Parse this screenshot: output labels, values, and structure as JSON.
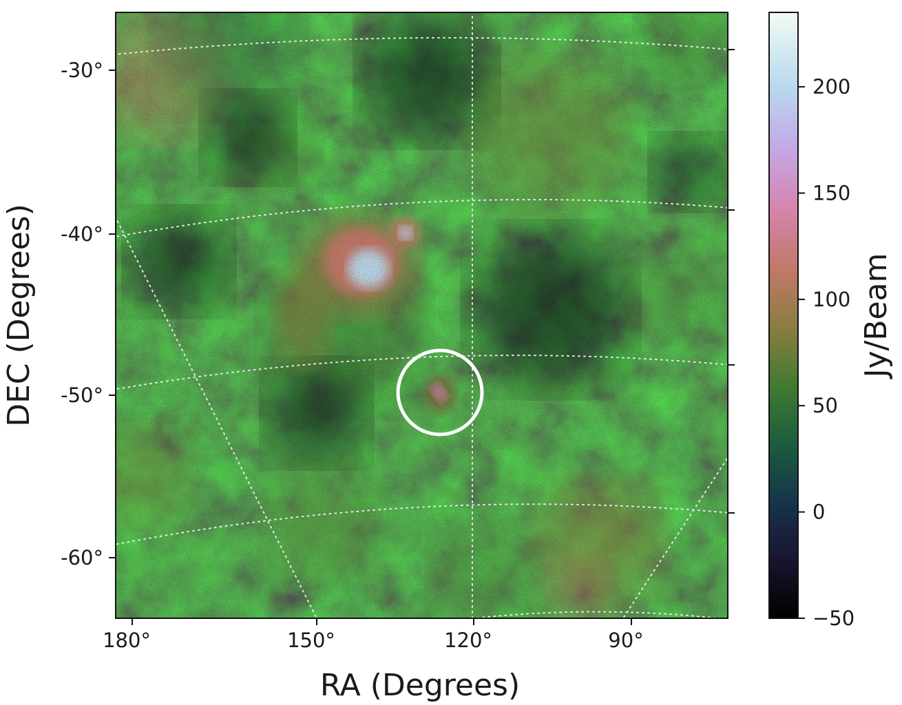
{
  "chart_data": {
    "type": "heatmap",
    "title": "",
    "xlabel": "RA (Degrees)",
    "ylabel": "DEC (Degrees)",
    "colorbar_label": "Jy/Beam",
    "colormap": "cubehelix",
    "color_range": [
      -50,
      235
    ],
    "colorbar_ticks": [
      "−50",
      "0",
      "50",
      "100",
      "150",
      "200"
    ],
    "colorbar_tick_values": [
      -50,
      0,
      50,
      100,
      150,
      200
    ],
    "x_ticks": [
      "180°",
      "150°",
      "120°",
      "90°"
    ],
    "x_tick_values": [
      180,
      150,
      120,
      90
    ],
    "y_ticks": [
      "-30°",
      "-40°",
      "-50°",
      "-60°"
    ],
    "y_tick_values": [
      -30,
      -40,
      -50,
      -60
    ],
    "grid": true,
    "features": [
      {
        "kind": "bright-complex",
        "ra": 140,
        "dec": -42,
        "peak_jy_beam": 205
      },
      {
        "kind": "compact-source",
        "ra": 133,
        "dec": -40,
        "peak_jy_beam": 220
      },
      {
        "kind": "circled-source",
        "ra": 126,
        "dec": -50,
        "peak_jy_beam": 165
      }
    ],
    "circle_marker": {
      "ra": 126,
      "dec": -50,
      "color": "#ffffff"
    }
  }
}
